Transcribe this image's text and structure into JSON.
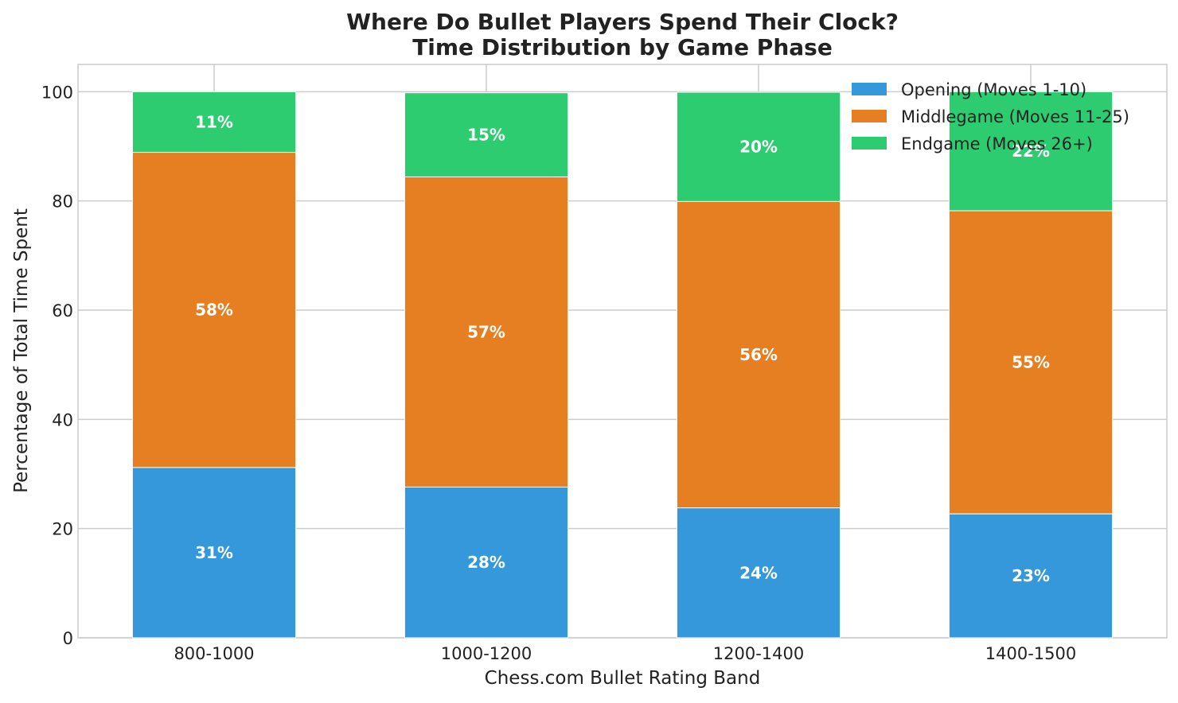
{
  "chart_data": {
    "type": "bar",
    "stacked": true,
    "title": "Where Do Bullet Players Spend Their Clock?",
    "subtitle": "Time Distribution by Game Phase",
    "xlabel": "Chess.com Bullet Rating Band",
    "ylabel": "Percentage of Total Time Spent",
    "categories": [
      "800-1000",
      "1000-1200",
      "1200-1400",
      "1400-1500"
    ],
    "series": [
      {
        "name": "Opening (Moves 1-10)",
        "color": "#3498db",
        "values": [
          31.2,
          27.6,
          23.8,
          22.7
        ],
        "labels": [
          "31%",
          "28%",
          "24%",
          "23%"
        ]
      },
      {
        "name": "Middlegame (Moves 11-25)",
        "color": "#e67e22",
        "values": [
          57.7,
          56.8,
          56.1,
          55.5
        ],
        "labels": [
          "58%",
          "57%",
          "56%",
          "55%"
        ]
      },
      {
        "name": "Endgame (Moves 26+)",
        "color": "#2ecc71",
        "values": [
          11.1,
          15.4,
          20.0,
          21.8
        ],
        "labels": [
          "11%",
          "15%",
          "20%",
          "22%"
        ]
      }
    ],
    "ylim": [
      0,
      105
    ],
    "yticks": [
      0,
      20,
      40,
      60,
      80,
      100
    ],
    "grid": true,
    "legend_position": "top-right"
  }
}
